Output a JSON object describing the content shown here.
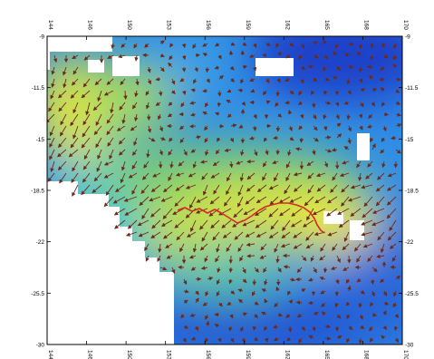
{
  "map": {
    "x_ticks": [
      "144",
      "146",
      "150",
      "153",
      "156",
      "159",
      "162",
      "165",
      "168",
      "170"
    ],
    "y_ticks": [
      "-9",
      "-11.5",
      "-15",
      "-18.5",
      "-22",
      "-25.5",
      "-30"
    ],
    "colormap": [
      "#1f4bd1",
      "#2e86e6",
      "#33c1e0",
      "#7fd36a",
      "#e8ea2a",
      "#fff02a"
    ],
    "path_color": "#d62a2a",
    "arrow_color": "#6b2a1a",
    "land_color": "#ffffff"
  }
}
